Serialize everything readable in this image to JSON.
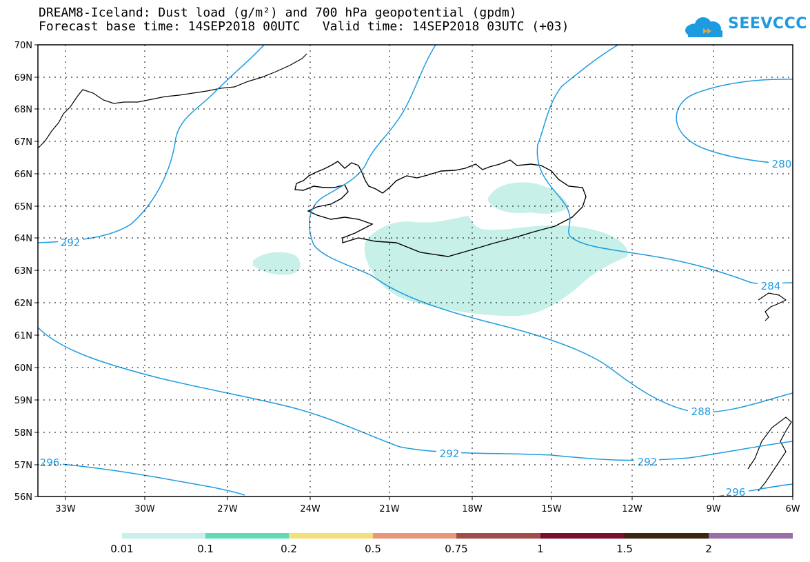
{
  "title": {
    "line1": "DREAM8-Iceland: Dust load (g/m²) and 700 hPa geopotential (gpdm)",
    "line2": "Forecast base time: 14SEP2018 00UTC   Valid time: 14SEP2018 03UTC (+03)"
  },
  "logo": {
    "text": "SEEVCCC"
  },
  "axes": {
    "lat_labels": [
      "70N",
      "69N",
      "68N",
      "67N",
      "66N",
      "65N",
      "64N",
      "63N",
      "62N",
      "61N",
      "60N",
      "59N",
      "58N",
      "57N",
      "56N"
    ],
    "lon_labels": [
      "33W",
      "30W",
      "27W",
      "24W",
      "21W",
      "18W",
      "15W",
      "12W",
      "9W",
      "6W"
    ]
  },
  "contours": {
    "labels": [
      "292",
      "280",
      "284",
      "288",
      "292",
      "292",
      "296",
      "296"
    ]
  },
  "colorbar": {
    "colors": [
      "#c6f0e8",
      "#5fdcb6",
      "#f3e07a",
      "#e8957a",
      "#a24c4a",
      "#7a0f2c",
      "#3b2612",
      "#9a6fa6"
    ],
    "ticks": [
      "0.01",
      "0.1",
      "0.2",
      "0.5",
      "0.75",
      "1",
      "1.5",
      "2"
    ]
  },
  "map_colors": {
    "dust_fill": "#c6f0e8",
    "contour": "#1e9be0",
    "coast": "#000000"
  }
}
